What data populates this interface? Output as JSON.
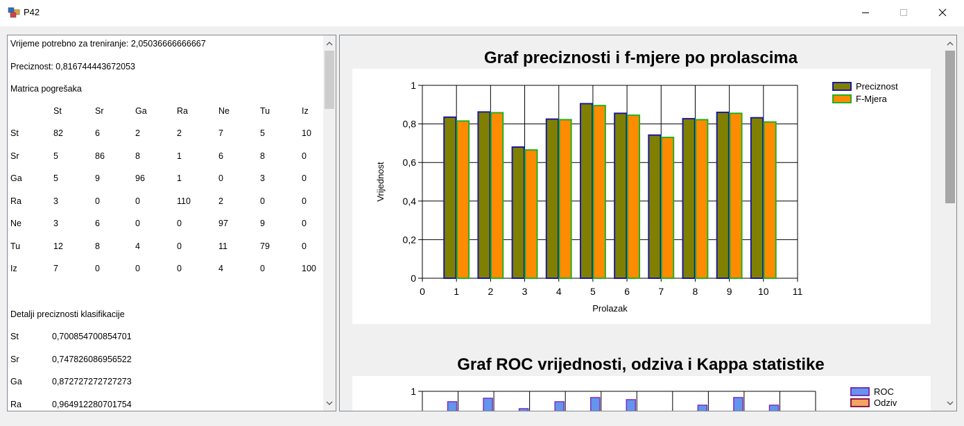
{
  "window": {
    "title": "P42"
  },
  "left": {
    "training_time": "Vrijeme potrebno za treniranje: 2,05036666666667",
    "precision": "Preciznost: 0,816744443672053",
    "matrix_title": "Matrica pogrešaka",
    "matrix_headers": [
      "St",
      "Sr",
      "Ga",
      "Ra",
      "Ne",
      "Tu",
      "Iz"
    ],
    "matrix_rows": [
      {
        "label": "St",
        "values": [
          "82",
          "6",
          "2",
          "2",
          "7",
          "5",
          "10"
        ]
      },
      {
        "label": "Sr",
        "values": [
          "5",
          "86",
          "8",
          "1",
          "6",
          "8",
          "0"
        ]
      },
      {
        "label": "Ga",
        "values": [
          "5",
          "9",
          "96",
          "1",
          "0",
          "3",
          "0"
        ]
      },
      {
        "label": "Ra",
        "values": [
          "3",
          "0",
          "0",
          "110",
          "2",
          "0",
          "0"
        ]
      },
      {
        "label": "Ne",
        "values": [
          "3",
          "6",
          "0",
          "0",
          "97",
          "9",
          "0"
        ]
      },
      {
        "label": "Tu",
        "values": [
          "12",
          "8",
          "4",
          "0",
          "11",
          "79",
          "0"
        ]
      },
      {
        "label": "Iz",
        "values": [
          "7",
          "0",
          "0",
          "0",
          "4",
          "0",
          "100"
        ]
      }
    ],
    "details_title": "Detalji preciznosti klasifikacije",
    "details_rows": [
      {
        "label": "St",
        "value": "0,700854700854701"
      },
      {
        "label": "Sr",
        "value": "0,747826086956522"
      },
      {
        "label": "Ga",
        "value": "0,872727272727273"
      },
      {
        "label": "Ra",
        "value": "0,964912280701754"
      }
    ]
  },
  "chart_data": [
    {
      "type": "bar",
      "title": "Graf preciznosti i f-mjere po prolascima",
      "xlabel": "Prolazak",
      "ylabel": "Vrijednost",
      "x": [
        1,
        2,
        3,
        4,
        5,
        6,
        7,
        8,
        9,
        10
      ],
      "xlim": [
        0,
        11
      ],
      "ylim": [
        0,
        1
      ],
      "xticks": [
        "0",
        "1",
        "2",
        "3",
        "4",
        "5",
        "6",
        "7",
        "8",
        "9",
        "10",
        "11"
      ],
      "yticks": [
        "0",
        "0,2",
        "0,4",
        "0,6",
        "0,8",
        "1"
      ],
      "grid": true,
      "legend": "top-right",
      "series": [
        {
          "name": "Preciznost",
          "color": "#808000",
          "border": "#1a1a9c",
          "values": [
            0.835,
            0.862,
            0.68,
            0.825,
            0.905,
            0.855,
            0.742,
            0.827,
            0.86,
            0.832
          ]
        },
        {
          "name": "F-Mjera",
          "color": "#ff8c00",
          "border": "#22b022",
          "values": [
            0.815,
            0.858,
            0.665,
            0.822,
            0.895,
            0.845,
            0.73,
            0.822,
            0.855,
            0.81
          ]
        }
      ]
    },
    {
      "type": "bar",
      "title": "Graf ROC vrijednosti, odziva i Kappa statistike",
      "ylim": [
        0,
        1
      ],
      "yticks": [
        "1"
      ],
      "legend": "top-right",
      "series": [
        {
          "name": "ROC",
          "color": "#6495ed",
          "border": "#7b2fbf"
        },
        {
          "name": "Odziv",
          "color": "#f4a460",
          "border": "#8b1a4a"
        }
      ]
    }
  ]
}
